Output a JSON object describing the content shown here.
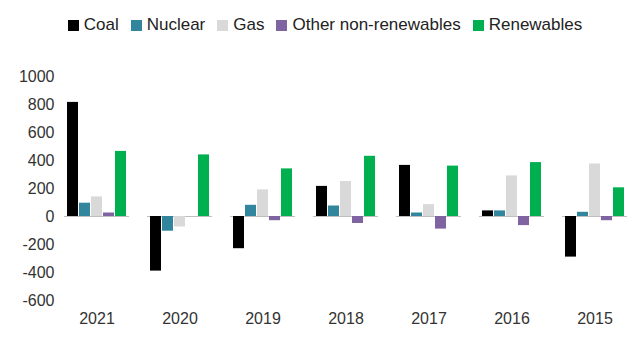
{
  "chart_data": {
    "type": "bar",
    "categories": [
      "2021",
      "2020",
      "2019",
      "2018",
      "2017",
      "2016",
      "2015"
    ],
    "series": [
      {
        "name": "Coal",
        "color": "#000000",
        "values": [
          815,
          -390,
          -230,
          215,
          365,
          40,
          -290
        ]
      },
      {
        "name": "Nuclear",
        "color": "#31859c",
        "values": [
          95,
          -105,
          80,
          75,
          25,
          40,
          30
        ]
      },
      {
        "name": "Gas",
        "color": "#d9d9d9",
        "values": [
          140,
          -75,
          190,
          250,
          85,
          290,
          375
        ]
      },
      {
        "name": "Other non-renewables",
        "color": "#8064a2",
        "values": [
          25,
          0,
          -30,
          -50,
          -90,
          -65,
          -30
        ]
      },
      {
        "name": "Renewables",
        "color": "#00b050",
        "values": [
          465,
          440,
          340,
          430,
          360,
          385,
          205
        ]
      }
    ],
    "ylim": [
      -600,
      1000
    ],
    "yticks": [
      -600,
      -400,
      -200,
      0,
      200,
      400,
      600,
      800,
      1000
    ],
    "legend": "top",
    "grid": false
  }
}
